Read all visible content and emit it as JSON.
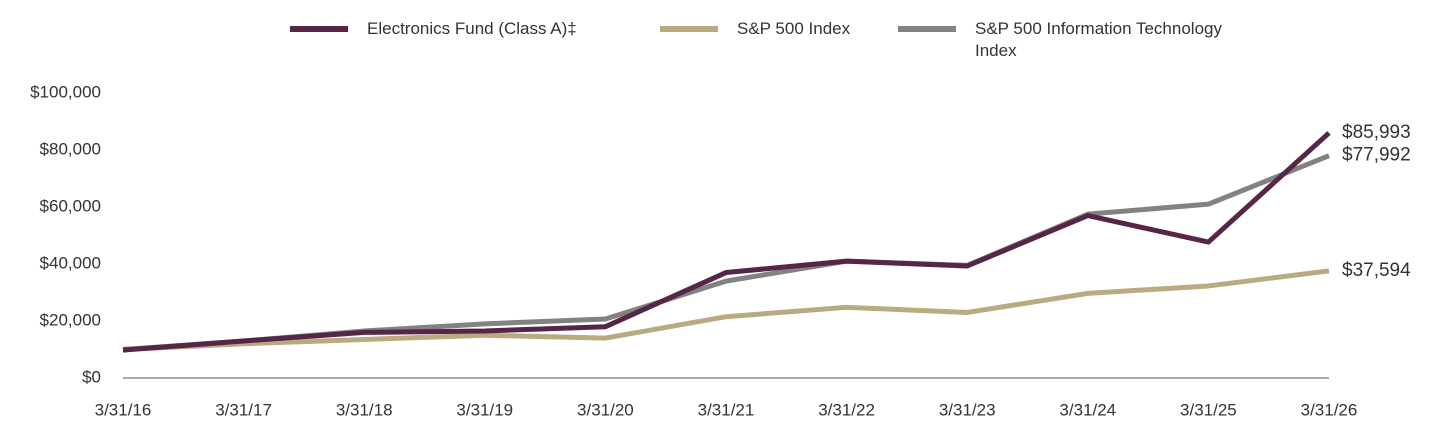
{
  "chart_data": {
    "type": "line",
    "categories": [
      "3/31/16",
      "3/31/17",
      "3/31/18",
      "3/31/19",
      "3/31/20",
      "3/31/21",
      "3/31/22",
      "3/31/23",
      "3/31/24",
      "3/31/25",
      "3/31/26"
    ],
    "series": [
      {
        "name": "S&P 500 Index",
        "color": "#b9aa7f",
        "values": [
          10000,
          12000,
          13500,
          15000,
          14000,
          21500,
          24800,
          23000,
          29700,
          32300,
          37594
        ],
        "value_labels": [
          null,
          null,
          null,
          null,
          null,
          null,
          null,
          null,
          null,
          null,
          "$37,594"
        ]
      },
      {
        "name": "S&P 500 Information Technology Index",
        "color": "#828282",
        "values": [
          10000,
          13000,
          16500,
          19000,
          20700,
          34000,
          41000,
          39500,
          57500,
          61000,
          77992
        ],
        "value_labels": [
          null,
          null,
          null,
          null,
          null,
          null,
          null,
          null,
          null,
          null,
          "$77,992"
        ]
      },
      {
        "name": "Electronics Fund (Class A)‡",
        "color": "#562548",
        "values": [
          9800,
          13000,
          16000,
          16500,
          18000,
          37000,
          41000,
          39300,
          57000,
          47700,
          85993
        ],
        "value_labels": [
          null,
          null,
          null,
          null,
          null,
          null,
          null,
          null,
          null,
          null,
          "$85,993"
        ]
      }
    ],
    "ylim": [
      0,
      100000
    ],
    "yticks": [
      {
        "value": 0,
        "label": "$0"
      },
      {
        "value": 20000,
        "label": "$20,000"
      },
      {
        "value": 40000,
        "label": "$40,000"
      },
      {
        "value": 60000,
        "label": "$60,000"
      },
      {
        "value": 80000,
        "label": "$80,000"
      },
      {
        "value": 100000,
        "label": "$100,000"
      }
    ],
    "grid": false,
    "legend": "top"
  }
}
